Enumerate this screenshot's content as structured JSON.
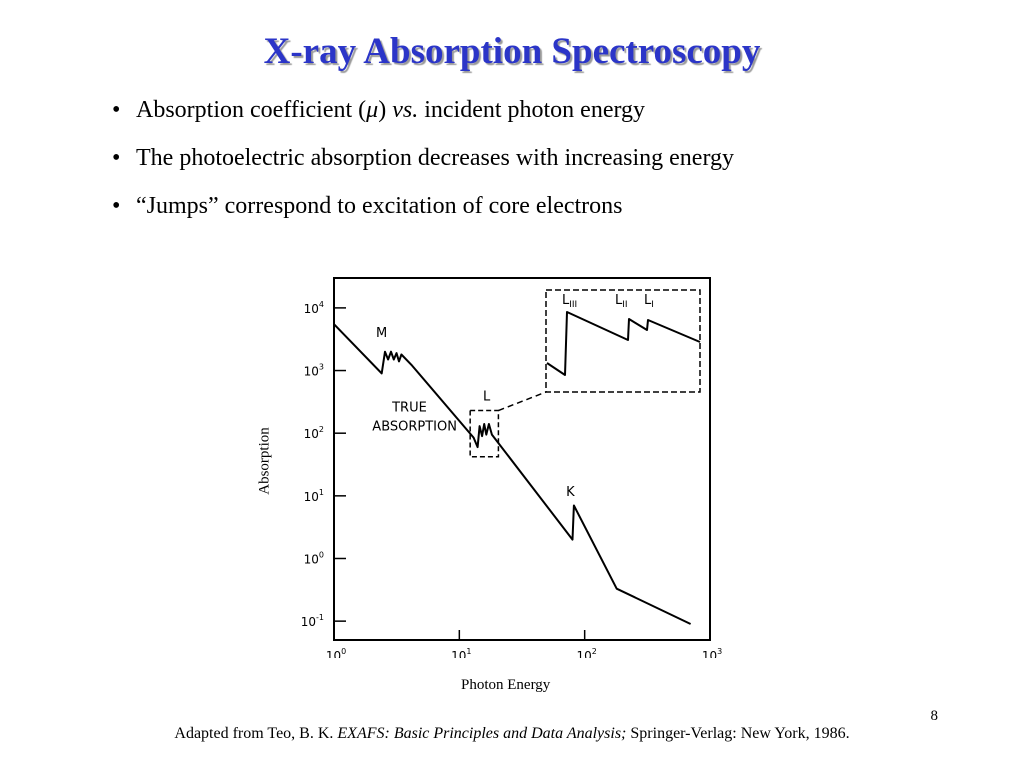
{
  "slide": {
    "title": "X-ray Absorption Spectroscopy",
    "bullets": [
      {
        "pre": "Absorption coefficient (",
        "mu": "μ",
        "mid": ") ",
        "vs": "vs.",
        "post": " incident photon energy"
      },
      {
        "text": "The photoelectric absorption decreases with increasing energy"
      },
      {
        "text": "“Jumps” correspond to excitation of core electrons"
      }
    ],
    "bullet_symbol": "•",
    "page_number": "8",
    "citation": {
      "pre": "Adapted from Teo, B. K. ",
      "italic": "EXAFS: Basic Principles and Data Analysis;",
      "post": " Springer-Verlag: New York, 1986."
    }
  },
  "chart_data": {
    "type": "line",
    "xlabel": "Photon Energy",
    "ylabel": "Absorption",
    "x_scale": "log",
    "y_scale": "log",
    "xlim": [
      1,
      1000
    ],
    "ylim": [
      0.05,
      30000
    ],
    "x_ticks": [
      {
        "base": "10",
        "exp": "0",
        "value": 1
      },
      {
        "base": "10",
        "exp": "1",
        "value": 10
      },
      {
        "base": "10",
        "exp": "2",
        "value": 100
      },
      {
        "base": "10",
        "exp": "3",
        "value": 1000
      }
    ],
    "y_ticks": [
      {
        "base": "10",
        "exp": "-1",
        "value": 0.1
      },
      {
        "base": "10",
        "exp": "0",
        "value": 1
      },
      {
        "base": "10",
        "exp": "1",
        "value": 10
      },
      {
        "base": "10",
        "exp": "2",
        "value": 100
      },
      {
        "base": "10",
        "exp": "3",
        "value": 1000
      },
      {
        "base": "10",
        "exp": "4",
        "value": 10000
      }
    ],
    "series": [
      {
        "points": [
          [
            1.0,
            5500
          ],
          [
            2.4,
            900
          ],
          [
            2.55,
            2000
          ],
          [
            2.7,
            1500
          ],
          [
            2.85,
            2000
          ],
          [
            3.0,
            1500
          ],
          [
            3.15,
            1900
          ],
          [
            3.3,
            1400
          ],
          [
            3.45,
            1800
          ],
          [
            4.2,
            1200
          ],
          [
            13,
            85
          ],
          [
            14,
            60
          ],
          [
            14.5,
            130
          ],
          [
            15.2,
            90
          ],
          [
            15.8,
            140
          ],
          [
            16.4,
            95
          ],
          [
            17.2,
            140
          ],
          [
            18.2,
            95
          ],
          [
            80,
            2.0
          ],
          [
            82,
            7.0
          ],
          [
            180,
            0.33
          ],
          [
            700,
            0.09
          ]
        ]
      }
    ],
    "annotations": [
      {
        "text": "M",
        "x": 2.4,
        "y": 3400
      },
      {
        "text": "TRUE",
        "x": 4.0,
        "y": 220
      },
      {
        "text": "ABSORPTION",
        "x": 4.4,
        "y": 110
      },
      {
        "text": "L",
        "x": 16.5,
        "y": 330
      },
      {
        "text": "K",
        "x": 77,
        "y": 10
      }
    ],
    "inset": {
      "annotations": [
        {
          "base": "L",
          "sub": "III"
        },
        {
          "base": "L",
          "sub": "II"
        },
        {
          "base": "L",
          "sub": "I"
        }
      ]
    }
  }
}
